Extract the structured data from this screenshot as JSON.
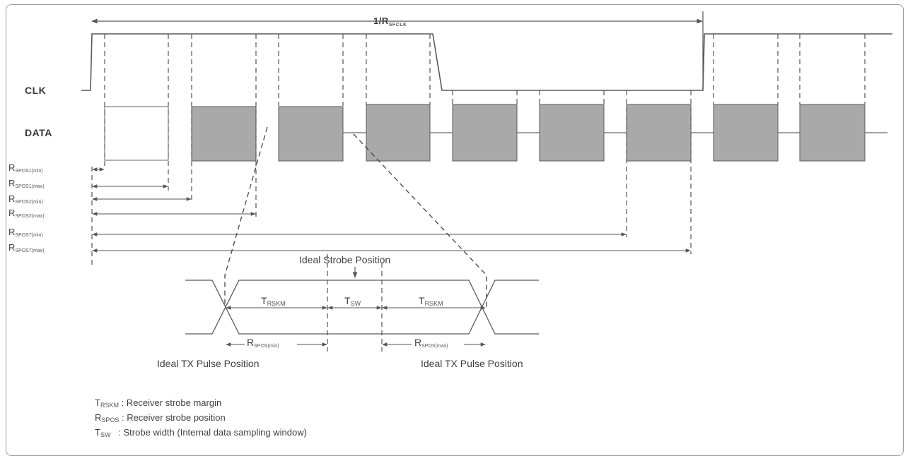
{
  "diagram": {
    "period_label": {
      "main": "1/R",
      "sub": "SFCLK"
    },
    "signals": {
      "clk": "CLK",
      "data": "DATA"
    },
    "timing_rows": [
      {
        "main": "R",
        "sub": "SPOS1(min)"
      },
      {
        "main": "R",
        "sub": "SPOS1(max)"
      },
      {
        "main": "R",
        "sub": "SPOS2(min)"
      },
      {
        "main": "R",
        "sub": "SPOS2(max)"
      },
      {
        "main": "R",
        "sub": "SPOS7(min)"
      },
      {
        "main": "R",
        "sub": "SPOS7(max)"
      }
    ],
    "detail": {
      "ideal_strobe": "Ideal Strobe Position",
      "trskm_left": {
        "main": "T",
        "sub": "RSKM"
      },
      "tsw": {
        "main": "T",
        "sub": "SW"
      },
      "trskm_right": {
        "main": "T",
        "sub": "RSKM"
      },
      "rspos_min": {
        "main": "R",
        "sub": "SPOS(min)"
      },
      "rspos_max": {
        "main": "R",
        "sub": "SPOS(max)"
      },
      "ideal_tx_left": "Ideal TX Pulse Position",
      "ideal_tx_right": "Ideal TX Pulse Position"
    },
    "legend": [
      {
        "main": "T",
        "sub": "RSKM",
        "text": " : Receiver strobe margin"
      },
      {
        "main": "R",
        "sub": "SPOS",
        "text": " : Receiver strobe position"
      },
      {
        "main": "T",
        "sub": "SW",
        "text": "   : Strobe width (Internal data sampling window)"
      }
    ]
  }
}
